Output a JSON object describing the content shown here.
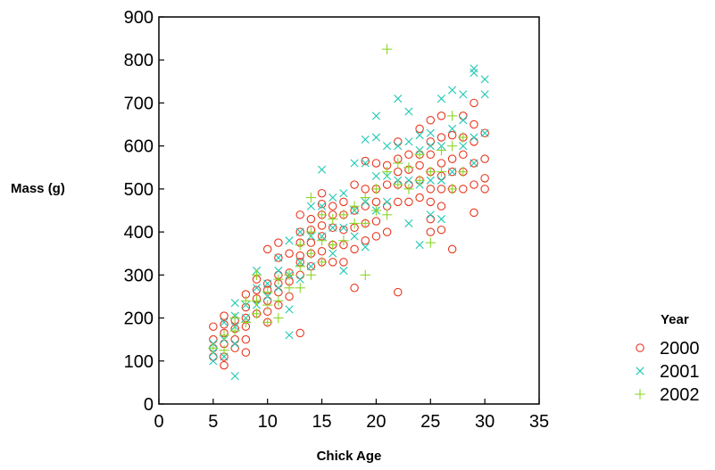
{
  "chart_data": {
    "type": "scatter",
    "xlabel": "Chick Age",
    "ylabel": "Mass (g)",
    "xlim": [
      0,
      35
    ],
    "ylim": [
      0,
      900
    ],
    "xticks": [
      "0",
      "5",
      "10",
      "15",
      "20",
      "25",
      "30",
      "35"
    ],
    "yticks": [
      "0",
      "100",
      "200",
      "300",
      "400",
      "500",
      "600",
      "700",
      "800",
      "900"
    ],
    "grid": false,
    "legend": {
      "title": "Year",
      "placement": "right"
    },
    "series": [
      {
        "name": "2000",
        "marker": "circle",
        "color": "#e8361e",
        "points": [
          [
            5,
            110
          ],
          [
            5,
            130
          ],
          [
            5,
            150
          ],
          [
            5,
            180
          ],
          [
            6,
            90
          ],
          [
            6,
            110
          ],
          [
            6,
            140
          ],
          [
            6,
            165
          ],
          [
            6,
            185
          ],
          [
            6,
            205
          ],
          [
            7,
            130
          ],
          [
            7,
            150
          ],
          [
            7,
            175
          ],
          [
            7,
            195
          ],
          [
            8,
            120
          ],
          [
            8,
            150
          ],
          [
            8,
            180
          ],
          [
            8,
            200
          ],
          [
            8,
            225
          ],
          [
            8,
            255
          ],
          [
            9,
            210
          ],
          [
            9,
            245
          ],
          [
            9,
            265
          ],
          [
            9,
            290
          ],
          [
            10,
            190
          ],
          [
            10,
            215
          ],
          [
            10,
            240
          ],
          [
            10,
            265
          ],
          [
            10,
            280
          ],
          [
            10,
            360
          ],
          [
            11,
            230
          ],
          [
            11,
            260
          ],
          [
            11,
            280
          ],
          [
            11,
            300
          ],
          [
            11,
            340
          ],
          [
            11,
            375
          ],
          [
            12,
            250
          ],
          [
            12,
            285
          ],
          [
            12,
            305
          ],
          [
            12,
            350
          ],
          [
            13,
            165
          ],
          [
            13,
            300
          ],
          [
            13,
            330
          ],
          [
            13,
            345
          ],
          [
            13,
            375
          ],
          [
            13,
            400
          ],
          [
            13,
            440
          ],
          [
            14,
            320
          ],
          [
            14,
            350
          ],
          [
            14,
            375
          ],
          [
            14,
            405
          ],
          [
            14,
            430
          ],
          [
            15,
            330
          ],
          [
            15,
            355
          ],
          [
            15,
            390
          ],
          [
            15,
            415
          ],
          [
            15,
            440
          ],
          [
            15,
            465
          ],
          [
            15,
            490
          ],
          [
            16,
            330
          ],
          [
            16,
            370
          ],
          [
            16,
            410
          ],
          [
            16,
            440
          ],
          [
            16,
            460
          ],
          [
            17,
            330
          ],
          [
            17,
            370
          ],
          [
            17,
            405
          ],
          [
            17,
            440
          ],
          [
            17,
            470
          ],
          [
            18,
            270
          ],
          [
            18,
            360
          ],
          [
            18,
            410
          ],
          [
            18,
            450
          ],
          [
            18,
            510
          ],
          [
            19,
            380
          ],
          [
            19,
            420
          ],
          [
            19,
            460
          ],
          [
            19,
            500
          ],
          [
            19,
            565
          ],
          [
            20,
            390
          ],
          [
            20,
            425
          ],
          [
            20,
            470
          ],
          [
            20,
            500
          ],
          [
            20,
            560
          ],
          [
            21,
            400
          ],
          [
            21,
            460
          ],
          [
            21,
            510
          ],
          [
            21,
            555
          ],
          [
            22,
            260
          ],
          [
            22,
            470
          ],
          [
            22,
            510
          ],
          [
            22,
            540
          ],
          [
            22,
            570
          ],
          [
            22,
            610
          ],
          [
            23,
            470
          ],
          [
            23,
            510
          ],
          [
            23,
            545
          ],
          [
            23,
            580
          ],
          [
            24,
            480
          ],
          [
            24,
            520
          ],
          [
            24,
            555
          ],
          [
            24,
            580
          ],
          [
            24,
            640
          ],
          [
            25,
            400
          ],
          [
            25,
            430
          ],
          [
            25,
            470
          ],
          [
            25,
            500
          ],
          [
            25,
            540
          ],
          [
            25,
            580
          ],
          [
            25,
            610
          ],
          [
            25,
            660
          ],
          [
            26,
            405
          ],
          [
            26,
            460
          ],
          [
            26,
            500
          ],
          [
            26,
            530
          ],
          [
            26,
            560
          ],
          [
            26,
            620
          ],
          [
            26,
            670
          ],
          [
            27,
            360
          ],
          [
            27,
            500
          ],
          [
            27,
            540
          ],
          [
            27,
            570
          ],
          [
            27,
            625
          ],
          [
            28,
            500
          ],
          [
            28,
            540
          ],
          [
            28,
            580
          ],
          [
            28,
            620
          ],
          [
            28,
            670
          ],
          [
            29,
            445
          ],
          [
            29,
            510
          ],
          [
            29,
            560
          ],
          [
            29,
            610
          ],
          [
            29,
            650
          ],
          [
            29,
            700
          ],
          [
            30,
            500
          ],
          [
            30,
            525
          ],
          [
            30,
            570
          ],
          [
            30,
            630
          ]
        ]
      },
      {
        "name": "2001",
        "marker": "x",
        "color": "#1ec8b4",
        "points": [
          [
            5,
            100
          ],
          [
            5,
            120
          ],
          [
            5,
            140
          ],
          [
            6,
            110
          ],
          [
            6,
            150
          ],
          [
            6,
            190
          ],
          [
            7,
            65
          ],
          [
            7,
            140
          ],
          [
            7,
            180
          ],
          [
            7,
            205
          ],
          [
            7,
            235
          ],
          [
            8,
            200
          ],
          [
            8,
            230
          ],
          [
            9,
            230
          ],
          [
            9,
            270
          ],
          [
            9,
            310
          ],
          [
            10,
            250
          ],
          [
            10,
            280
          ],
          [
            11,
            270
          ],
          [
            11,
            310
          ],
          [
            11,
            340
          ],
          [
            12,
            160
          ],
          [
            12,
            220
          ],
          [
            12,
            300
          ],
          [
            12,
            380
          ],
          [
            13,
            290
          ],
          [
            13,
            330
          ],
          [
            13,
            400
          ],
          [
            14,
            320
          ],
          [
            14,
            390
          ],
          [
            14,
            460
          ],
          [
            15,
            390
          ],
          [
            15,
            460
          ],
          [
            15,
            545
          ],
          [
            16,
            350
          ],
          [
            16,
            410
          ],
          [
            16,
            480
          ],
          [
            17,
            310
          ],
          [
            17,
            410
          ],
          [
            17,
            490
          ],
          [
            18,
            390
          ],
          [
            18,
            450
          ],
          [
            18,
            560
          ],
          [
            19,
            365
          ],
          [
            19,
            470
          ],
          [
            19,
            560
          ],
          [
            19,
            615
          ],
          [
            20,
            450
          ],
          [
            20,
            530
          ],
          [
            20,
            620
          ],
          [
            20,
            670
          ],
          [
            21,
            470
          ],
          [
            21,
            530
          ],
          [
            21,
            600
          ],
          [
            22,
            520
          ],
          [
            22,
            600
          ],
          [
            22,
            710
          ],
          [
            23,
            420
          ],
          [
            23,
            520
          ],
          [
            23,
            610
          ],
          [
            23,
            680
          ],
          [
            24,
            370
          ],
          [
            24,
            510
          ],
          [
            24,
            590
          ],
          [
            24,
            625
          ],
          [
            25,
            440
          ],
          [
            25,
            520
          ],
          [
            25,
            600
          ],
          [
            25,
            630
          ],
          [
            26,
            430
          ],
          [
            26,
            520
          ],
          [
            26,
            600
          ],
          [
            26,
            710
          ],
          [
            27,
            540
          ],
          [
            27,
            640
          ],
          [
            27,
            730
          ],
          [
            28,
            600
          ],
          [
            28,
            660
          ],
          [
            28,
            720
          ],
          [
            29,
            560
          ],
          [
            29,
            620
          ],
          [
            29,
            770
          ],
          [
            29,
            780
          ],
          [
            30,
            630
          ],
          [
            30,
            720
          ],
          [
            30,
            755
          ]
        ]
      },
      {
        "name": "2002",
        "marker": "plus",
        "color": "#8cd628",
        "points": [
          [
            5,
            130
          ],
          [
            6,
            125
          ],
          [
            6,
            160
          ],
          [
            7,
            170
          ],
          [
            7,
            200
          ],
          [
            8,
            190
          ],
          [
            8,
            240
          ],
          [
            9,
            210
          ],
          [
            9,
            240
          ],
          [
            9,
            300
          ],
          [
            10,
            190
          ],
          [
            10,
            230
          ],
          [
            10,
            260
          ],
          [
            11,
            200
          ],
          [
            11,
            240
          ],
          [
            11,
            290
          ],
          [
            12,
            270
          ],
          [
            12,
            300
          ],
          [
            13,
            270
          ],
          [
            13,
            320
          ],
          [
            13,
            370
          ],
          [
            14,
            300
          ],
          [
            14,
            350
          ],
          [
            14,
            400
          ],
          [
            14,
            480
          ],
          [
            15,
            330
          ],
          [
            15,
            380
          ],
          [
            15,
            440
          ],
          [
            16,
            370
          ],
          [
            16,
            430
          ],
          [
            17,
            380
          ],
          [
            17,
            440
          ],
          [
            18,
            420
          ],
          [
            18,
            460
          ],
          [
            19,
            300
          ],
          [
            19,
            420
          ],
          [
            19,
            480
          ],
          [
            20,
            450
          ],
          [
            20,
            500
          ],
          [
            21,
            440
          ],
          [
            21,
            540
          ],
          [
            21,
            825
          ],
          [
            22,
            510
          ],
          [
            22,
            560
          ],
          [
            23,
            500
          ],
          [
            23,
            550
          ],
          [
            24,
            520
          ],
          [
            24,
            580
          ],
          [
            25,
            375
          ],
          [
            25,
            540
          ],
          [
            26,
            540
          ],
          [
            26,
            590
          ],
          [
            27,
            500
          ],
          [
            27,
            600
          ],
          [
            27,
            670
          ],
          [
            28,
            540
          ],
          [
            28,
            620
          ]
        ]
      }
    ]
  }
}
